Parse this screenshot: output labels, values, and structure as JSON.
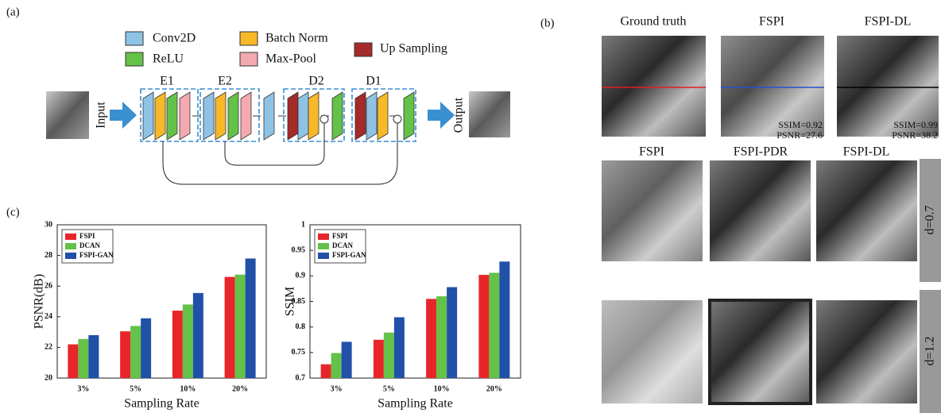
{
  "panel_a": {
    "label": "(a)",
    "legend": [
      "Conv2D",
      "ReLU",
      "Batch Norm",
      "Max-Pool",
      "Up Sampling"
    ],
    "blocks": [
      "E1",
      "E2",
      "D2",
      "D1"
    ],
    "input": "Input",
    "output": "Output"
  },
  "panel_b": {
    "label": "(b)",
    "top_titles": [
      "Ground truth",
      "FSPI",
      "FSPI-DL"
    ],
    "metrics": [
      [
        "SSIM=0.92",
        "PSNR=27.6"
      ],
      [
        "SSIM=0.99",
        "PSNR=38.2"
      ]
    ],
    "bottom_titles": [
      "FSPI",
      "FSPI-PDR",
      "FSPI-DL"
    ],
    "rows": [
      "d=0.7",
      "d=1.2"
    ]
  },
  "panel_c": {
    "label": "(c)"
  },
  "chart_data": [
    {
      "type": "bar",
      "ylabel": "PSNR(dB)",
      "xlabel": "Sampling Rate",
      "categories": [
        "3%",
        "5%",
        "10%",
        "20%"
      ],
      "series": [
        {
          "name": "FSPI",
          "color": "#e8262a",
          "values": [
            22.2,
            23.05,
            24.4,
            26.6
          ]
        },
        {
          "name": "DCAN",
          "color": "#63c247",
          "values": [
            22.55,
            23.4,
            24.8,
            26.75
          ]
        },
        {
          "name": "FSPI-GAN",
          "color": "#2150a8",
          "values": [
            22.8,
            23.9,
            25.55,
            27.8
          ]
        }
      ],
      "ylim": [
        20,
        30
      ],
      "yticks": [
        20,
        22,
        24,
        26,
        28,
        30
      ],
      "legend": "upper left"
    },
    {
      "type": "bar",
      "ylabel": "SSIM",
      "xlabel": "Sampling Rate",
      "categories": [
        "3%",
        "5%",
        "10%",
        "20%"
      ],
      "series": [
        {
          "name": "FSPI",
          "color": "#e8262a",
          "values": [
            0.727,
            0.775,
            0.855,
            0.902
          ]
        },
        {
          "name": "DCAN",
          "color": "#63c247",
          "values": [
            0.749,
            0.789,
            0.86,
            0.906
          ]
        },
        {
          "name": "FSPI-GAN",
          "color": "#2150a8",
          "values": [
            0.771,
            0.819,
            0.878,
            0.928
          ]
        }
      ],
      "ylim": [
        0.7,
        1
      ],
      "yticks": [
        0.7,
        0.75,
        0.8,
        0.85,
        0.9,
        0.95,
        1
      ],
      "legend": "upper left"
    }
  ]
}
